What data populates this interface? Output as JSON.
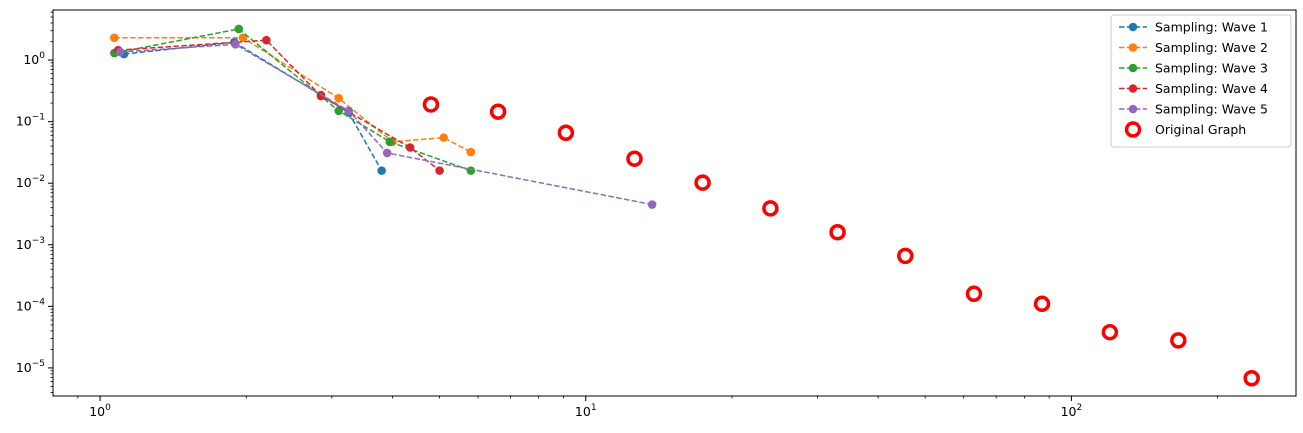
{
  "chart_data": {
    "type": "scatter",
    "title": "",
    "xlabel": "",
    "ylabel": "",
    "xscale": "log",
    "yscale": "log",
    "xlim": [
      0.8,
      290
    ],
    "ylim": [
      3.5e-06,
      6.5
    ],
    "grid": false,
    "legend_position": "top-right",
    "x_ticks": [
      {
        "value": 1,
        "base": "10",
        "exp": "0"
      },
      {
        "value": 10,
        "base": "10",
        "exp": "1"
      },
      {
        "value": 100,
        "base": "10",
        "exp": "2"
      }
    ],
    "y_ticks": [
      {
        "value": 1,
        "base": "10",
        "exp": "0"
      },
      {
        "value": 0.1,
        "base": "10",
        "exp": "−1"
      },
      {
        "value": 0.01,
        "base": "10",
        "exp": "−2"
      },
      {
        "value": 0.001,
        "base": "10",
        "exp": "−3"
      },
      {
        "value": 0.0001,
        "base": "10",
        "exp": "−4"
      },
      {
        "value": 1e-05,
        "base": "10",
        "exp": "−5"
      }
    ],
    "series": [
      {
        "name": "Sampling: Wave 1",
        "color": "#1f77b4",
        "style": "dashed-line-markers",
        "x": [
          1.12,
          1.89,
          2.85,
          3.25,
          3.8
        ],
        "y": [
          1.25,
          1.95,
          0.27,
          0.14,
          0.016
        ]
      },
      {
        "name": "Sampling: Wave 2",
        "color": "#ff7f0e",
        "style": "dashed-line-markers",
        "x": [
          1.07,
          1.97,
          3.1,
          4.0,
          5.1,
          5.8
        ],
        "y": [
          2.3,
          2.3,
          0.24,
          0.047,
          0.055,
          0.032
        ]
      },
      {
        "name": "Sampling: Wave 3",
        "color": "#2ca02c",
        "style": "dashed-line-markers",
        "x": [
          1.07,
          1.93,
          3.1,
          3.95,
          5.8
        ],
        "y": [
          1.3,
          3.2,
          0.15,
          0.047,
          0.016
        ]
      },
      {
        "name": "Sampling: Wave 4",
        "color": "#d62728",
        "style": "dashed-line-markers",
        "x": [
          1.09,
          2.2,
          2.85,
          4.35,
          5.0
        ],
        "y": [
          1.45,
          2.1,
          0.26,
          0.038,
          0.016
        ]
      },
      {
        "name": "Sampling: Wave 5",
        "color": "#9467bd",
        "style": "dashed-line-markers",
        "x": [
          1.1,
          1.9,
          3.25,
          3.9,
          13.7
        ],
        "y": [
          1.35,
          1.8,
          0.15,
          0.031,
          0.0045
        ]
      },
      {
        "name": "Original Graph",
        "color": "#ff0000",
        "style": "hollow-circles",
        "x": [
          4.8,
          6.6,
          9.1,
          12.6,
          17.4,
          24.0,
          33.0,
          45.5,
          63.0,
          87.0,
          120.0,
          166.0,
          235.0
        ],
        "y": [
          0.19,
          0.145,
          0.066,
          0.025,
          0.0102,
          0.0039,
          0.0016,
          0.00066,
          0.00016,
          0.00011,
          3.8e-05,
          2.8e-05,
          6.8e-06
        ]
      }
    ]
  }
}
